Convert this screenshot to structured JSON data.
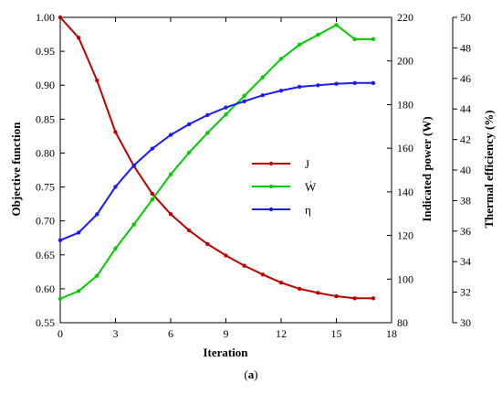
{
  "chart_data": {
    "type": "line",
    "caption": {
      "open": "(",
      "letter": "a",
      "close": ")"
    },
    "xlabel": "Iteration",
    "xlim": [
      0,
      18
    ],
    "xticks": [
      0,
      3,
      6,
      9,
      12,
      15,
      18
    ],
    "axes": {
      "left": {
        "label": "Objective function",
        "lim": [
          0.55,
          1.0
        ],
        "ticks": [
          0.55,
          0.6,
          0.65,
          0.7,
          0.75,
          0.8,
          0.85,
          0.9,
          0.95,
          1.0
        ],
        "decimals": 2
      },
      "right1": {
        "label": "Indicated power (W)",
        "lim": [
          80,
          220
        ],
        "ticks": [
          80,
          100,
          120,
          140,
          160,
          180,
          200,
          220
        ],
        "decimals": 0
      },
      "right2": {
        "label": "Thermal efficiency (%)",
        "lim": [
          30,
          50
        ],
        "ticks": [
          30,
          32,
          34,
          36,
          38,
          40,
          42,
          44,
          46,
          48,
          50
        ],
        "decimals": 0
      }
    },
    "x": [
      0,
      1,
      2,
      3,
      4,
      5,
      6,
      7,
      8,
      9,
      10,
      11,
      12,
      13,
      14,
      15,
      16,
      17
    ],
    "series": [
      {
        "name": "J",
        "axis": "left",
        "color": "#c00000",
        "values": [
          1.0,
          0.97,
          0.907,
          0.831,
          0.781,
          0.74,
          0.71,
          0.686,
          0.666,
          0.649,
          0.634,
          0.621,
          0.609,
          0.6,
          0.594,
          0.589,
          0.586,
          0.586
        ]
      },
      {
        "name": "Ẇ",
        "axis": "right1",
        "color": "#00cc00",
        "values": [
          91.0,
          94.5,
          101.5,
          114.0,
          125.0,
          136.5,
          148.0,
          158.0,
          167.0,
          175.5,
          184.0,
          192.5,
          201.0,
          207.5,
          212.0,
          216.5,
          210.0,
          210.0
        ]
      },
      {
        "name": "η",
        "axis": "right2",
        "color": "#1a1aff",
        "values": [
          35.4,
          35.9,
          37.1,
          38.9,
          40.3,
          41.4,
          42.3,
          43.0,
          43.6,
          44.1,
          44.5,
          44.9,
          45.2,
          45.45,
          45.55,
          45.65,
          45.7,
          45.7
        ]
      }
    ],
    "legend_position": "center-right",
    "grid": false
  }
}
